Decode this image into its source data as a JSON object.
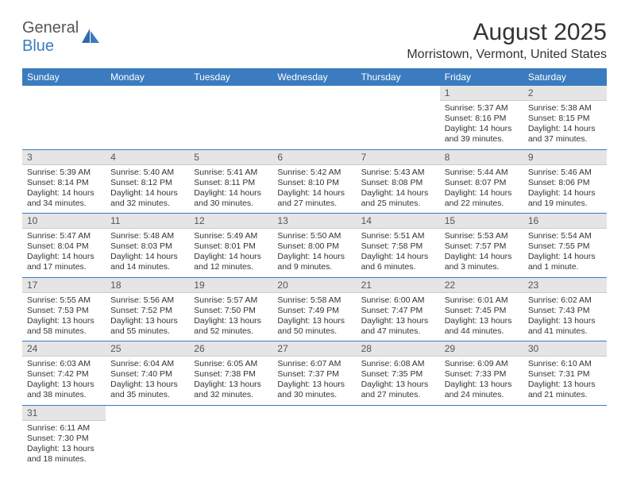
{
  "logo": {
    "text1": "General",
    "text2": "Blue"
  },
  "title": "August 2025",
  "location": "Morristown, Vermont, United States",
  "colors": {
    "header_bg": "#3b7bbf",
    "header_text": "#ffffff",
    "daynum_bg": "#e5e5e5",
    "row_divider": "#3b7bbf"
  },
  "daysOfWeek": [
    "Sunday",
    "Monday",
    "Tuesday",
    "Wednesday",
    "Thursday",
    "Friday",
    "Saturday"
  ],
  "weeks": [
    [
      {
        "blank": true
      },
      {
        "blank": true
      },
      {
        "blank": true
      },
      {
        "blank": true
      },
      {
        "blank": true
      },
      {
        "n": "1",
        "sunrise": "Sunrise: 5:37 AM",
        "sunset": "Sunset: 8:16 PM",
        "day": "Daylight: 14 hours and 39 minutes."
      },
      {
        "n": "2",
        "sunrise": "Sunrise: 5:38 AM",
        "sunset": "Sunset: 8:15 PM",
        "day": "Daylight: 14 hours and 37 minutes."
      }
    ],
    [
      {
        "n": "3",
        "sunrise": "Sunrise: 5:39 AM",
        "sunset": "Sunset: 8:14 PM",
        "day": "Daylight: 14 hours and 34 minutes."
      },
      {
        "n": "4",
        "sunrise": "Sunrise: 5:40 AM",
        "sunset": "Sunset: 8:12 PM",
        "day": "Daylight: 14 hours and 32 minutes."
      },
      {
        "n": "5",
        "sunrise": "Sunrise: 5:41 AM",
        "sunset": "Sunset: 8:11 PM",
        "day": "Daylight: 14 hours and 30 minutes."
      },
      {
        "n": "6",
        "sunrise": "Sunrise: 5:42 AM",
        "sunset": "Sunset: 8:10 PM",
        "day": "Daylight: 14 hours and 27 minutes."
      },
      {
        "n": "7",
        "sunrise": "Sunrise: 5:43 AM",
        "sunset": "Sunset: 8:08 PM",
        "day": "Daylight: 14 hours and 25 minutes."
      },
      {
        "n": "8",
        "sunrise": "Sunrise: 5:44 AM",
        "sunset": "Sunset: 8:07 PM",
        "day": "Daylight: 14 hours and 22 minutes."
      },
      {
        "n": "9",
        "sunrise": "Sunrise: 5:46 AM",
        "sunset": "Sunset: 8:06 PM",
        "day": "Daylight: 14 hours and 19 minutes."
      }
    ],
    [
      {
        "n": "10",
        "sunrise": "Sunrise: 5:47 AM",
        "sunset": "Sunset: 8:04 PM",
        "day": "Daylight: 14 hours and 17 minutes."
      },
      {
        "n": "11",
        "sunrise": "Sunrise: 5:48 AM",
        "sunset": "Sunset: 8:03 PM",
        "day": "Daylight: 14 hours and 14 minutes."
      },
      {
        "n": "12",
        "sunrise": "Sunrise: 5:49 AM",
        "sunset": "Sunset: 8:01 PM",
        "day": "Daylight: 14 hours and 12 minutes."
      },
      {
        "n": "13",
        "sunrise": "Sunrise: 5:50 AM",
        "sunset": "Sunset: 8:00 PM",
        "day": "Daylight: 14 hours and 9 minutes."
      },
      {
        "n": "14",
        "sunrise": "Sunrise: 5:51 AM",
        "sunset": "Sunset: 7:58 PM",
        "day": "Daylight: 14 hours and 6 minutes."
      },
      {
        "n": "15",
        "sunrise": "Sunrise: 5:53 AM",
        "sunset": "Sunset: 7:57 PM",
        "day": "Daylight: 14 hours and 3 minutes."
      },
      {
        "n": "16",
        "sunrise": "Sunrise: 5:54 AM",
        "sunset": "Sunset: 7:55 PM",
        "day": "Daylight: 14 hours and 1 minute."
      }
    ],
    [
      {
        "n": "17",
        "sunrise": "Sunrise: 5:55 AM",
        "sunset": "Sunset: 7:53 PM",
        "day": "Daylight: 13 hours and 58 minutes."
      },
      {
        "n": "18",
        "sunrise": "Sunrise: 5:56 AM",
        "sunset": "Sunset: 7:52 PM",
        "day": "Daylight: 13 hours and 55 minutes."
      },
      {
        "n": "19",
        "sunrise": "Sunrise: 5:57 AM",
        "sunset": "Sunset: 7:50 PM",
        "day": "Daylight: 13 hours and 52 minutes."
      },
      {
        "n": "20",
        "sunrise": "Sunrise: 5:58 AM",
        "sunset": "Sunset: 7:49 PM",
        "day": "Daylight: 13 hours and 50 minutes."
      },
      {
        "n": "21",
        "sunrise": "Sunrise: 6:00 AM",
        "sunset": "Sunset: 7:47 PM",
        "day": "Daylight: 13 hours and 47 minutes."
      },
      {
        "n": "22",
        "sunrise": "Sunrise: 6:01 AM",
        "sunset": "Sunset: 7:45 PM",
        "day": "Daylight: 13 hours and 44 minutes."
      },
      {
        "n": "23",
        "sunrise": "Sunrise: 6:02 AM",
        "sunset": "Sunset: 7:43 PM",
        "day": "Daylight: 13 hours and 41 minutes."
      }
    ],
    [
      {
        "n": "24",
        "sunrise": "Sunrise: 6:03 AM",
        "sunset": "Sunset: 7:42 PM",
        "day": "Daylight: 13 hours and 38 minutes."
      },
      {
        "n": "25",
        "sunrise": "Sunrise: 6:04 AM",
        "sunset": "Sunset: 7:40 PM",
        "day": "Daylight: 13 hours and 35 minutes."
      },
      {
        "n": "26",
        "sunrise": "Sunrise: 6:05 AM",
        "sunset": "Sunset: 7:38 PM",
        "day": "Daylight: 13 hours and 32 minutes."
      },
      {
        "n": "27",
        "sunrise": "Sunrise: 6:07 AM",
        "sunset": "Sunset: 7:37 PM",
        "day": "Daylight: 13 hours and 30 minutes."
      },
      {
        "n": "28",
        "sunrise": "Sunrise: 6:08 AM",
        "sunset": "Sunset: 7:35 PM",
        "day": "Daylight: 13 hours and 27 minutes."
      },
      {
        "n": "29",
        "sunrise": "Sunrise: 6:09 AM",
        "sunset": "Sunset: 7:33 PM",
        "day": "Daylight: 13 hours and 24 minutes."
      },
      {
        "n": "30",
        "sunrise": "Sunrise: 6:10 AM",
        "sunset": "Sunset: 7:31 PM",
        "day": "Daylight: 13 hours and 21 minutes."
      }
    ],
    [
      {
        "n": "31",
        "sunrise": "Sunrise: 6:11 AM",
        "sunset": "Sunset: 7:30 PM",
        "day": "Daylight: 13 hours and 18 minutes."
      },
      {
        "blank": true
      },
      {
        "blank": true
      },
      {
        "blank": true
      },
      {
        "blank": true
      },
      {
        "blank": true
      },
      {
        "blank": true
      }
    ]
  ]
}
